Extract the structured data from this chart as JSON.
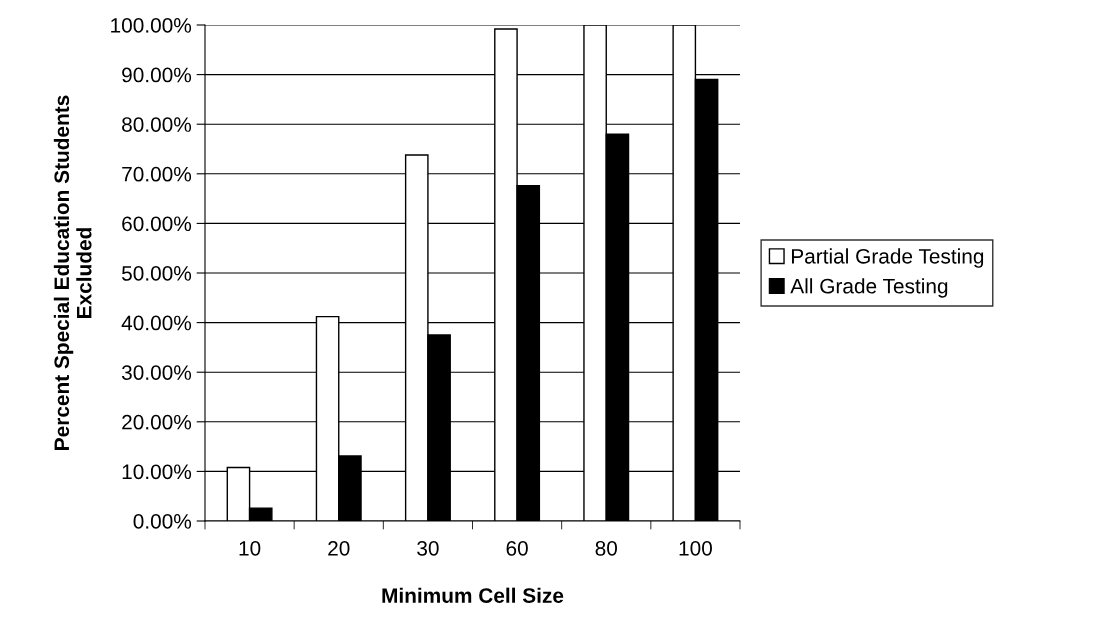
{
  "chart_data": {
    "type": "bar",
    "xlabel": "Minimum Cell Size",
    "ylabel": "Percent Special Education Students\nExcluded",
    "categories": [
      "10",
      "20",
      "30",
      "60",
      "80",
      "100"
    ],
    "series": [
      {
        "name": "Partial Grade Testing",
        "color": "#ffffff",
        "values": [
          10.8,
          41.2,
          73.8,
          99.2,
          100,
          100
        ]
      },
      {
        "name": "All Grade Testing",
        "color": "#000000",
        "values": [
          2.6,
          13.1,
          37.5,
          67.6,
          78.0,
          89.0
        ]
      }
    ],
    "ylim": [
      0,
      100
    ],
    "yticks": [
      {
        "value": 0,
        "label": "0.00%"
      },
      {
        "value": 10,
        "label": "10.00%"
      },
      {
        "value": 20,
        "label": "20.00%"
      },
      {
        "value": 30,
        "label": "30.00%"
      },
      {
        "value": 40,
        "label": "40.00%"
      },
      {
        "value": 50,
        "label": "50.00%"
      },
      {
        "value": 60,
        "label": "60.00%"
      },
      {
        "value": 70,
        "label": "70.00%"
      },
      {
        "value": 80,
        "label": "80.00%"
      },
      {
        "value": 90,
        "label": "90.00%"
      },
      {
        "value": 100,
        "label": "100.00%"
      }
    ],
    "grid": "y",
    "legend": "right"
  }
}
